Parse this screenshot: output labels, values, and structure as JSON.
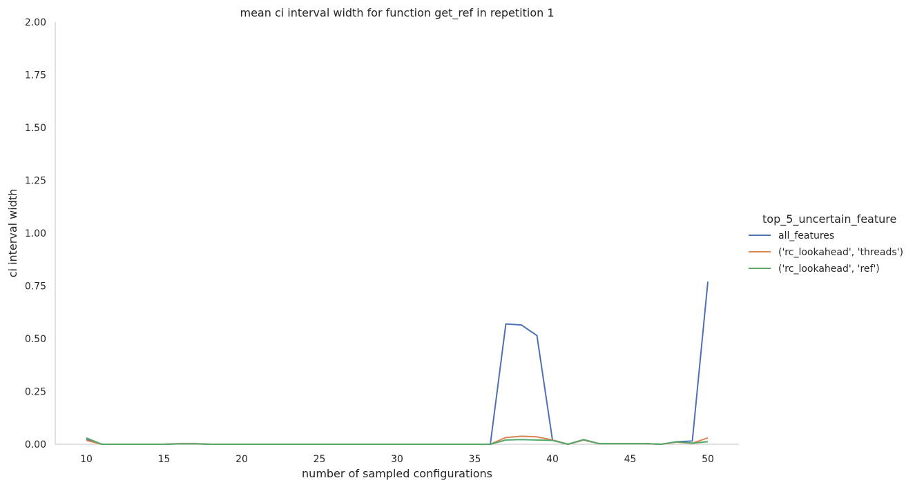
{
  "chart_data": {
    "type": "line",
    "title": "mean ci interval width for function get_ref in repetition 1",
    "xlabel": "number of sampled configurations",
    "ylabel": "ci interval width",
    "xlim": [
      8,
      52
    ],
    "ylim": [
      0,
      2
    ],
    "xticks": [
      10,
      15,
      20,
      25,
      30,
      35,
      40,
      45,
      50
    ],
    "yticks": [
      "0.00",
      "0.25",
      "0.50",
      "0.75",
      "1.00",
      "1.25",
      "1.50",
      "1.75",
      "2.00"
    ],
    "grid": false,
    "legend_title": "top_5_uncertain_feature",
    "legend_position": "right",
    "x": [
      10,
      11,
      12,
      13,
      14,
      15,
      16,
      17,
      18,
      19,
      20,
      21,
      22,
      23,
      24,
      25,
      26,
      27,
      28,
      29,
      30,
      31,
      32,
      33,
      34,
      35,
      36,
      37,
      38,
      39,
      40,
      41,
      42,
      43,
      44,
      45,
      46,
      47,
      48,
      49,
      50
    ],
    "series": [
      {
        "name": "all_features",
        "color": "#4c72b0",
        "values": [
          0.025,
          0,
          0,
          0,
          0,
          0,
          0.002,
          0.002,
          0,
          0,
          0,
          0,
          0,
          0,
          0,
          0,
          0,
          0,
          0,
          0,
          0,
          0,
          0,
          0,
          0,
          0,
          0,
          0.57,
          0.565,
          0.515,
          0.02,
          0,
          0.02,
          0.003,
          0.003,
          0.003,
          0.003,
          0,
          0.012,
          0.015,
          0.77
        ]
      },
      {
        "name": "('rc_lookahead', 'threads')",
        "color": "#dd8452",
        "values": [
          0.018,
          0,
          0,
          0,
          0,
          0,
          0.003,
          0.003,
          0,
          0,
          0,
          0,
          0,
          0,
          0,
          0,
          0,
          0,
          0,
          0,
          0,
          0,
          0,
          0,
          0,
          0,
          0,
          0.032,
          0.038,
          0.035,
          0.02,
          0,
          0.02,
          0.003,
          0.003,
          0.003,
          0.003,
          0,
          0.01,
          0.005,
          0.03
        ]
      },
      {
        "name": "('rc_lookahead', 'ref')",
        "color": "#55a868",
        "values": [
          0.03,
          0,
          0,
          0,
          0,
          0,
          0.002,
          0.002,
          0,
          0,
          0,
          0,
          0,
          0,
          0,
          0,
          0,
          0,
          0,
          0,
          0,
          0,
          0,
          0,
          0,
          0,
          0,
          0.02,
          0.022,
          0.02,
          0.018,
          0,
          0.022,
          0.003,
          0.003,
          0.003,
          0.003,
          0,
          0.012,
          0.005,
          0.012
        ]
      }
    ]
  }
}
